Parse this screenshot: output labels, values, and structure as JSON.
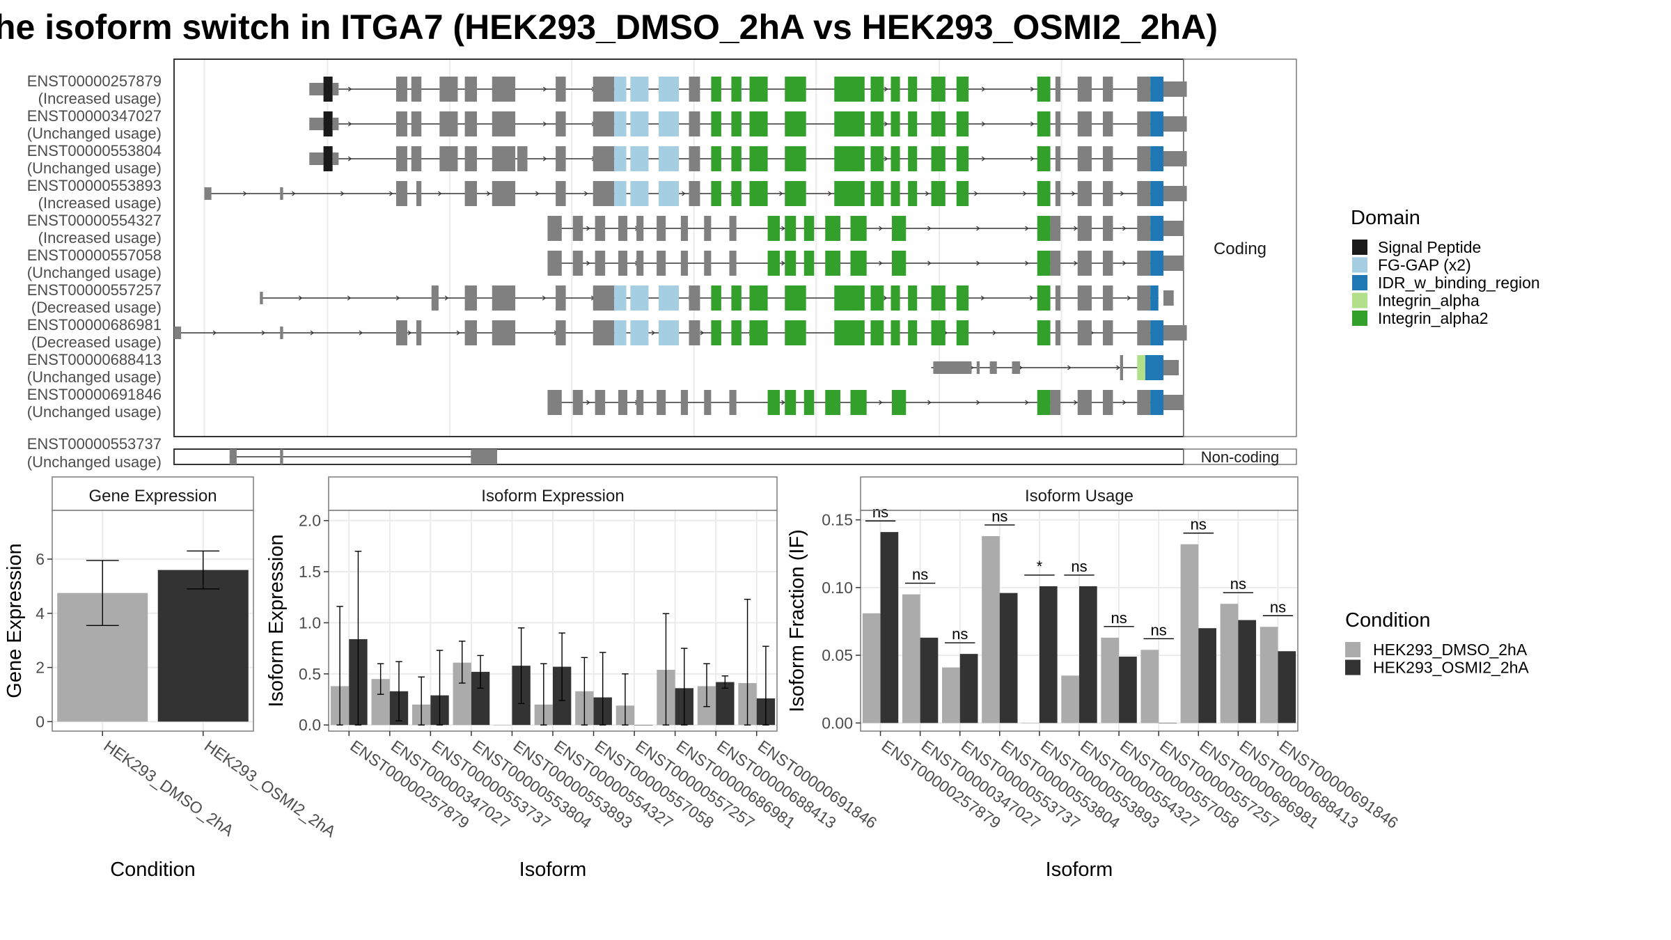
{
  "title": "he isoform switch in ITGA7 (HEK293_DMSO_2hA vs HEK293_OSMI2_2hA)",
  "colors": {
    "dmso": "#ababab",
    "osmi": "#333333",
    "exon": "#808080",
    "panel_border": "#7a7a7a",
    "strip_fill": "#ffffff",
    "grid": "#ebebeb"
  },
  "structure": {
    "coding_label": "Coding",
    "noncoding_label": "Non-coding",
    "domain_legend_title": "Domain",
    "domains": [
      {
        "name": "Signal Peptide",
        "color": "#1a1a1a"
      },
      {
        "name": "FG-GAP (x2)",
        "color": "#a6cee3"
      },
      {
        "name": "IDR_w_binding_region",
        "color": "#1f78b4"
      },
      {
        "name": "Integrin_alpha",
        "color": "#b2df8a"
      },
      {
        "name": "Integrin_alpha2",
        "color": "#33a02c"
      }
    ],
    "coding_isoforms": [
      {
        "id": "ENST00000257879",
        "usage": "(Increased usage)",
        "kind": "full",
        "tx_start": 0.134,
        "signal": true
      },
      {
        "id": "ENST00000347027",
        "usage": "(Unchanged usage)",
        "kind": "full",
        "tx_start": 0.134,
        "signal": true
      },
      {
        "id": "ENST00000553804",
        "usage": "(Unchanged usage)",
        "kind": "full",
        "tx_start": 0.134,
        "signal": true,
        "extra_exon": true
      },
      {
        "id": "ENST00000553893",
        "usage": "(Increased usage)",
        "kind": "full",
        "tx_start": 0.03,
        "signal": false
      },
      {
        "id": "ENST00000554327",
        "usage": "(Increased usage)",
        "kind": "short",
        "tx_start": 0.37
      },
      {
        "id": "ENST00000557058",
        "usage": "(Unchanged usage)",
        "kind": "short",
        "tx_start": 0.37
      },
      {
        "id": "ENST00000557257",
        "usage": "(Decreased usage)",
        "kind": "full",
        "tx_start": 0.085,
        "signal": false,
        "truncated_end": true
      },
      {
        "id": "ENST00000686981",
        "usage": "(Decreased usage)",
        "kind": "full",
        "tx_start": 0.0,
        "signal": false
      },
      {
        "id": "ENST00000688413",
        "usage": "(Unchanged usage)",
        "kind": "tail",
        "tx_start": 0.75
      },
      {
        "id": "ENST00000691846",
        "usage": "(Unchanged usage)",
        "kind": "short",
        "tx_start": 0.37
      }
    ],
    "noncoding_isoforms": [
      {
        "id": "ENST00000553737",
        "usage": "(Unchanged usage)"
      }
    ]
  },
  "gene_panel": {
    "strip": "Gene Expression",
    "ylabel": "Gene Expression",
    "xlabel": "Condition",
    "yticks": [
      "0",
      "2",
      "4",
      "6"
    ]
  },
  "iso_expr_panel": {
    "strip": "Isoform Expression",
    "ylabel": "Isoform Expression",
    "xlabel": "Isoform",
    "yticks": [
      "0.0",
      "0.5",
      "1.0",
      "1.5",
      "2.0"
    ]
  },
  "iso_usage_panel": {
    "strip": "Isoform Usage",
    "ylabel": "Isoform Fraction (IF)",
    "xlabel": "Isoform",
    "yticks": [
      "0.00",
      "0.05",
      "0.10",
      "0.15"
    ]
  },
  "condition_legend": {
    "title": "Condition",
    "items": [
      "HEK293_DMSO_2hA",
      "HEK293_OSMI2_2hA"
    ]
  },
  "chart_data": [
    {
      "type": "bar",
      "title": "Gene Expression",
      "xlabel": "Condition",
      "ylabel": "Gene Expression",
      "categories": [
        "HEK293_DMSO_2hA",
        "HEK293_OSMI2_2hA"
      ],
      "values": [
        4.75,
        5.6
      ],
      "errors": [
        [
          3.55,
          5.95
        ],
        [
          4.9,
          6.3
        ]
      ],
      "ylim": [
        -0.35,
        7.8
      ],
      "grid": true
    },
    {
      "type": "bar",
      "title": "Isoform Expression",
      "xlabel": "Isoform",
      "ylabel": "Isoform Expression",
      "categories": [
        "ENST00000257879",
        "ENST00000347027",
        "ENST00000553737",
        "ENST00000553804",
        "ENST00000553893",
        "ENST00000554327",
        "ENST00000557058",
        "ENST00000557257",
        "ENST00000686981",
        "ENST00000688413",
        "ENST00000691846"
      ],
      "series": [
        {
          "name": "HEK293_DMSO_2hA",
          "values": [
            0.38,
            0.45,
            0.2,
            0.61,
            0.0,
            0.2,
            0.33,
            0.19,
            0.54,
            0.38,
            0.41
          ],
          "errors": [
            [
              0.0,
              1.16
            ],
            [
              0.3,
              0.6
            ],
            [
              0.0,
              0.47
            ],
            [
              0.41,
              0.82
            ],
            [
              0.0,
              0.0
            ],
            [
              0.0,
              0.6
            ],
            [
              0.0,
              0.66
            ],
            [
              0.0,
              0.5
            ],
            [
              0.0,
              1.09
            ],
            [
              0.18,
              0.6
            ],
            [
              0.0,
              1.23
            ]
          ]
        },
        {
          "name": "HEK293_OSMI2_2hA",
          "values": [
            0.84,
            0.33,
            0.29,
            0.52,
            0.58,
            0.57,
            0.27,
            0.0,
            0.36,
            0.42,
            0.26
          ],
          "errors": [
            [
              0.0,
              1.7
            ],
            [
              0.04,
              0.62
            ],
            [
              0.0,
              0.73
            ],
            [
              0.36,
              0.68
            ],
            [
              0.21,
              0.95
            ],
            [
              0.24,
              0.9
            ],
            [
              0.0,
              0.71
            ],
            [
              0.0,
              0.0
            ],
            [
              0.0,
              0.75
            ],
            [
              0.36,
              0.48
            ],
            [
              0.0,
              0.77
            ]
          ]
        }
      ],
      "ylim": [
        -0.06,
        2.1
      ],
      "grid": true
    },
    {
      "type": "bar",
      "title": "Isoform Usage",
      "xlabel": "Isoform",
      "ylabel": "Isoform Fraction (IF)",
      "categories": [
        "ENST00000257879",
        "ENST00000347027",
        "ENST00000553737",
        "ENST00000553804",
        "ENST00000553893",
        "ENST00000554327",
        "ENST00000557058",
        "ENST00000557257",
        "ENST00000686981",
        "ENST00000688413",
        "ENST00000691846"
      ],
      "series": [
        {
          "name": "HEK293_DMSO_2hA",
          "values": [
            0.081,
            0.095,
            0.041,
            0.138,
            0.0,
            0.035,
            0.063,
            0.054,
            0.132,
            0.088,
            0.071
          ]
        },
        {
          "name": "HEK293_OSMI2_2hA",
          "values": [
            0.141,
            0.063,
            0.051,
            0.096,
            0.101,
            0.101,
            0.049,
            0.0,
            0.07,
            0.076,
            0.053
          ]
        }
      ],
      "significance": [
        "ns",
        "ns",
        "ns",
        "ns",
        "*",
        "ns",
        "ns",
        "ns",
        "ns",
        "ns",
        "ns"
      ],
      "ylim": [
        -0.006,
        0.157
      ],
      "grid": true
    }
  ]
}
